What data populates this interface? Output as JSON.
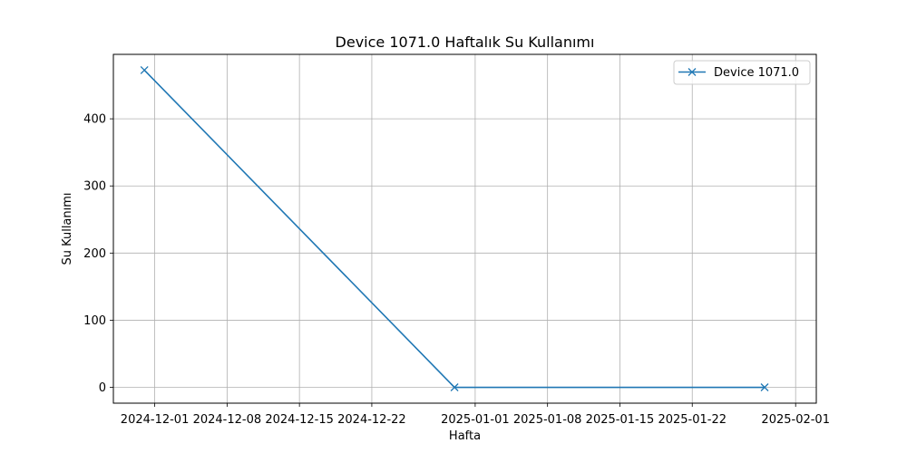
{
  "chart_data": {
    "type": "line",
    "title": "Device 1071.0 Haftalık Su Kullanımı",
    "xlabel": "Hafta",
    "ylabel": "Su Kullanımı",
    "x_ticks": [
      "2024-12-01",
      "2024-12-08",
      "2024-12-15",
      "2024-12-22",
      "2025-01-01",
      "2025-01-08",
      "2025-01-15",
      "2025-01-22",
      "2025-02-01"
    ],
    "y_ticks": [
      0,
      100,
      200,
      300,
      400
    ],
    "xlim": [
      "2024-11-27",
      "2025-02-03"
    ],
    "ylim": [
      -23.6,
      496
    ],
    "grid": true,
    "legend_position": "top-right",
    "series": [
      {
        "name": "Device 1071.0",
        "color": "#1f77b4",
        "marker": "x",
        "x": [
          "2024-11-30",
          "2024-12-30",
          "2025-01-29"
        ],
        "y": [
          472.5,
          0,
          0
        ]
      }
    ]
  }
}
